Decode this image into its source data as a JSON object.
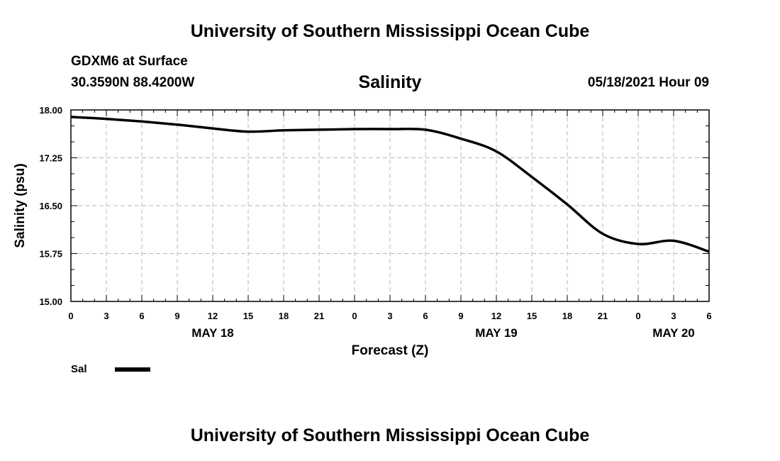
{
  "header": {
    "title_top": "University of Southern Mississippi Ocean Cube",
    "station": "GDXM6 at Surface",
    "coords": "30.3590N  88.4200W",
    "chart_title": "Salinity",
    "datetime": "05/18/2021 Hour 09",
    "title_bottom": "University of Southern Mississippi Ocean Cube"
  },
  "chart_data": {
    "type": "line",
    "title": "Salinity",
    "xlabel": "Forecast (Z)",
    "ylabel": "Salinity (psu)",
    "ylim": [
      15.0,
      18.0
    ],
    "yticks": [
      "15.00",
      "15.75",
      "16.50",
      "17.25",
      "18.00"
    ],
    "xlim": [
      0,
      54
    ],
    "xtick_labels": [
      "0",
      "3",
      "6",
      "9",
      "12",
      "15",
      "18",
      "21",
      "0",
      "3",
      "6",
      "9",
      "12",
      "15",
      "18",
      "21",
      "0",
      "3",
      "6"
    ],
    "date_labels": [
      {
        "label": "MAY 18",
        "hour": 12
      },
      {
        "label": "MAY 19",
        "hour": 36
      },
      {
        "label": "MAY 20",
        "hour": 51
      }
    ],
    "grid": true,
    "legend": [
      {
        "label": "Sal",
        "color": "#000000"
      }
    ],
    "series": [
      {
        "name": "Sal",
        "color": "#000000",
        "x": [
          0,
          3,
          6,
          9,
          12,
          15,
          18,
          21,
          24,
          27,
          30,
          33,
          36,
          39,
          42,
          45,
          48,
          51,
          54
        ],
        "values": [
          17.89,
          17.86,
          17.82,
          17.77,
          17.71,
          17.66,
          17.68,
          17.69,
          17.7,
          17.7,
          17.69,
          17.55,
          17.35,
          16.95,
          16.52,
          16.06,
          15.9,
          15.95,
          15.78
        ]
      }
    ]
  }
}
